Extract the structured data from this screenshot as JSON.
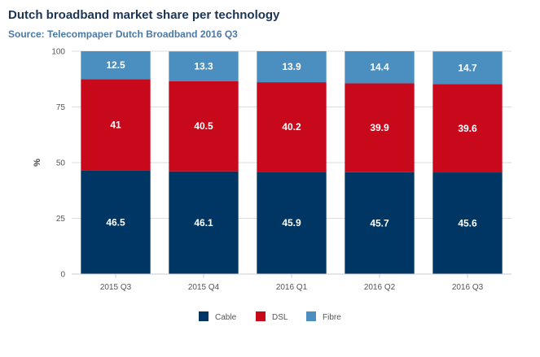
{
  "chart_data": {
    "type": "bar",
    "stacked": true,
    "title": "Dutch broadband market share per technology",
    "subtitle": "Source: Telecompaper Dutch Broadband 2016 Q3",
    "xlabel": "",
    "ylabel": "%",
    "ylim": [
      0,
      100
    ],
    "yticks": [
      0,
      25,
      50,
      75,
      100
    ],
    "grid": "horizontal",
    "legend_position": "bottom",
    "categories": [
      "2015 Q3",
      "2015 Q4",
      "2016 Q1",
      "2016 Q2",
      "2016 Q3"
    ],
    "series": [
      {
        "name": "Cable",
        "color": "#003663",
        "values": [
          46.5,
          46.1,
          45.9,
          45.7,
          45.6
        ]
      },
      {
        "name": "DSL",
        "color": "#c8091b",
        "values": [
          41,
          40.5,
          40.2,
          39.9,
          39.6
        ]
      },
      {
        "name": "Fibre",
        "color": "#4a8fc0",
        "values": [
          12.5,
          13.3,
          13.9,
          14.4,
          14.7
        ]
      }
    ]
  }
}
